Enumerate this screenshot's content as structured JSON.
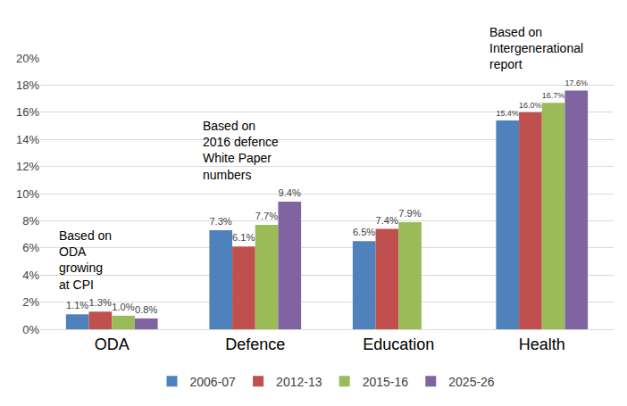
{
  "chart_data": {
    "type": "bar",
    "categories": [
      "ODA",
      "Defence",
      "Education",
      "Health"
    ],
    "series": [
      {
        "name": "2006-07",
        "color": "#4f81bd",
        "values": [
          1.1,
          7.3,
          6.5,
          15.4
        ],
        "value_labels": [
          "1.1%",
          "7.3%",
          "6.5%",
          "15.4%"
        ]
      },
      {
        "name": "2012-13",
        "color": "#c0504d",
        "values": [
          1.3,
          6.1,
          7.4,
          16.0
        ],
        "value_labels": [
          "1.3%",
          "6.1%",
          "7.4%",
          "16.0%"
        ]
      },
      {
        "name": "2015-16",
        "color": "#9bbb59",
        "values": [
          1.0,
          7.7,
          7.9,
          16.7
        ],
        "value_labels": [
          "1.0%",
          "7.7%",
          "7.9%",
          "16.7%"
        ]
      },
      {
        "name": "2025-26",
        "color": "#8064a2",
        "values": [
          0.8,
          9.4,
          null,
          17.6
        ],
        "value_labels": [
          "0.8%",
          "9.4%",
          null,
          "17.6%"
        ]
      }
    ],
    "annotations": [
      {
        "category": "ODA",
        "lines": [
          "Based on",
          "ODA",
          "growing",
          "at CPI"
        ]
      },
      {
        "category": "Defence",
        "lines": [
          "Based on",
          "2016 defence",
          "White Paper",
          "numbers"
        ]
      },
      {
        "category": "Health",
        "lines": [
          "Based on",
          "Intergenerational",
          "report"
        ]
      }
    ],
    "ylim": [
      0,
      20
    ],
    "yticks": [
      {
        "value": 0,
        "label": "0%"
      },
      {
        "value": 2,
        "label": "2%"
      },
      {
        "value": 4,
        "label": "4%"
      },
      {
        "value": 6,
        "label": "6%"
      },
      {
        "value": 8,
        "label": "8%"
      },
      {
        "value": 10,
        "label": "10%"
      },
      {
        "value": 12,
        "label": "12%"
      },
      {
        "value": 14,
        "label": "14%"
      },
      {
        "value": 16,
        "label": "16%"
      },
      {
        "value": 18,
        "label": "18%"
      },
      {
        "value": 20,
        "label": "20%"
      }
    ],
    "grid": true,
    "data_labels": true,
    "legend": "bottom"
  }
}
